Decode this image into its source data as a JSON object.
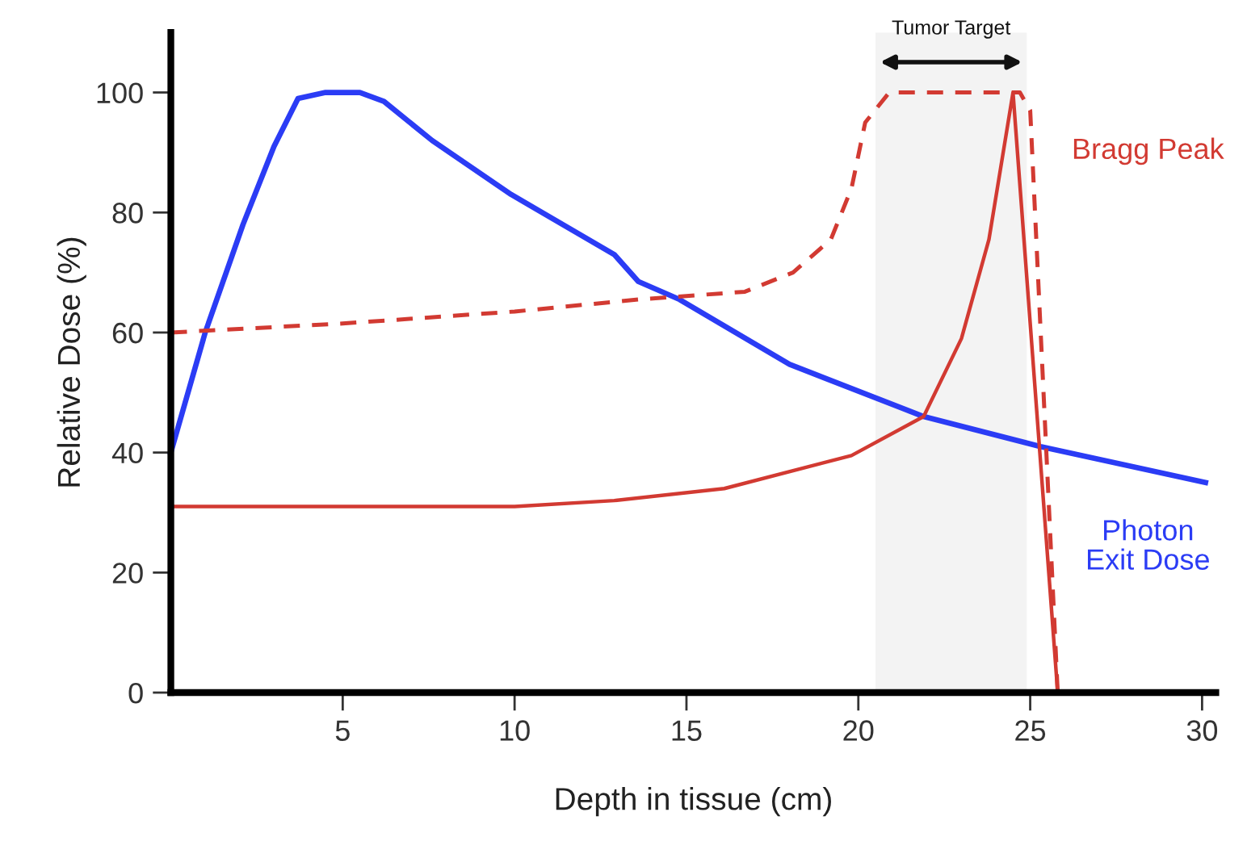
{
  "chart_data": {
    "type": "line",
    "xlabel": "Depth in tissue (cm)",
    "ylabel": "Relative Dose (%)",
    "xlim": [
      0,
      30.4
    ],
    "ylim": [
      0,
      110
    ],
    "xticks": [
      5,
      10,
      15,
      20,
      25,
      30
    ],
    "yticks": [
      0,
      20,
      40,
      60,
      80,
      100
    ],
    "grid": false,
    "legend": false,
    "marker": "none",
    "series": [
      {
        "name": "Photon\nExit Dose",
        "color": "#2b3cf5",
        "line_style": "solid",
        "x": [
          0,
          1.0,
          2.1,
          3.0,
          3.7,
          4.5,
          5.5,
          6.2,
          7.6,
          9.9,
          12.9,
          13.6,
          14.8,
          18.0,
          21.9,
          25.3,
          30.1
        ],
        "values": [
          40,
          60,
          78,
          91,
          99,
          100,
          100,
          98.5,
          92,
          83,
          73,
          68.5,
          65.5,
          54.7,
          46,
          41,
          35
        ]
      },
      {
        "name": "Bragg Peak",
        "color": "#d23a32",
        "line_style": "solid",
        "x": [
          0,
          5,
          10,
          12.9,
          16.1,
          19.8,
          21.9,
          23.0,
          23.8,
          24.5,
          25.8
        ],
        "values": [
          31,
          31,
          31,
          32,
          34,
          39.5,
          46,
          59,
          75.5,
          100,
          0
        ]
      },
      {
        "color": "#d23a32",
        "line_style": "dashed",
        "x": [
          0,
          5,
          10,
          13.6,
          16.7,
          18.1,
          19.2,
          19.8,
          20.2,
          20.9,
          24.7,
          25.0,
          25.8
        ],
        "values": [
          60,
          61.5,
          63.5,
          65.5,
          66.8,
          70,
          75.5,
          84,
          95,
          100,
          100,
          97,
          0
        ]
      }
    ],
    "bands": [
      {
        "axis": "x",
        "from": 20.5,
        "to": 24.9,
        "label": "Tumor Target",
        "color": "#111111"
      }
    ]
  }
}
